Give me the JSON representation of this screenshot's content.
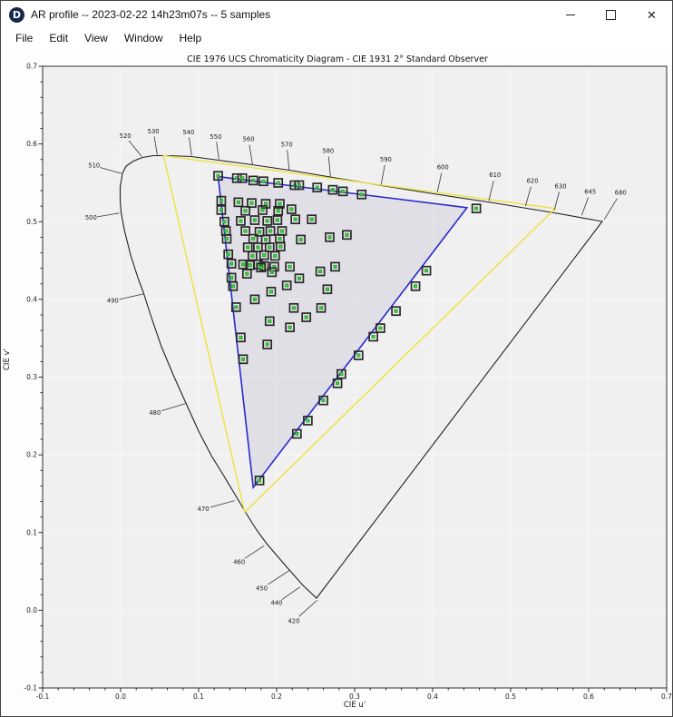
{
  "window": {
    "title": "AR profile -- 2023-02-22 14h23m07s -- 5 samples",
    "icon_letter": "D",
    "controls": {
      "minimize": "minimize",
      "maximize": "maximize",
      "close": "✕"
    }
  },
  "menu": {
    "items": [
      "File",
      "Edit",
      "View",
      "Window",
      "Help"
    ]
  },
  "chart_data": {
    "type": "scatter",
    "title": "CIE 1976 UCS Chromaticity Diagram - CIE 1931 2° Standard Observer",
    "xlabel": "CIE u'",
    "ylabel": "CIE v'",
    "xlim": [
      -0.1,
      0.7
    ],
    "ylim": [
      -0.1,
      0.7
    ],
    "xtick_labels": [
      "-0.1",
      "0.0",
      "0.1",
      "0.2",
      "0.3",
      "0.4",
      "0.5",
      "0.6",
      "0.7"
    ],
    "ytick_labels": [
      "-0.1",
      "0.0",
      "0.1",
      "0.2",
      "0.3",
      "0.4",
      "0.5",
      "0.6",
      "0.7"
    ],
    "grid": true,
    "marker_colors": {
      "sample_outline": "#282828",
      "sample_dot": "#2fd32f"
    },
    "series": [
      {
        "name": "profile-samples",
        "marker": "square-with-green-dot",
        "points": [
          [
            0.125,
            0.559
          ],
          [
            0.149,
            0.556
          ],
          [
            0.156,
            0.556
          ],
          [
            0.17,
            0.553
          ],
          [
            0.183,
            0.552
          ],
          [
            0.202,
            0.55
          ],
          [
            0.223,
            0.547
          ],
          [
            0.229,
            0.547
          ],
          [
            0.252,
            0.544
          ],
          [
            0.272,
            0.541
          ],
          [
            0.285,
            0.539
          ],
          [
            0.309,
            0.535
          ],
          [
            0.456,
            0.517
          ],
          [
            0.129,
            0.527
          ],
          [
            0.129,
            0.515
          ],
          [
            0.133,
            0.5
          ],
          [
            0.135,
            0.488
          ],
          [
            0.136,
            0.478
          ],
          [
            0.138,
            0.458
          ],
          [
            0.142,
            0.446
          ],
          [
            0.142,
            0.428
          ],
          [
            0.144,
            0.417
          ],
          [
            0.148,
            0.39
          ],
          [
            0.154,
            0.351
          ],
          [
            0.157,
            0.323
          ],
          [
            0.151,
            0.525
          ],
          [
            0.168,
            0.524
          ],
          [
            0.186,
            0.523
          ],
          [
            0.204,
            0.523
          ],
          [
            0.16,
            0.514
          ],
          [
            0.182,
            0.515
          ],
          [
            0.202,
            0.514
          ],
          [
            0.219,
            0.516
          ],
          [
            0.154,
            0.501
          ],
          [
            0.172,
            0.502
          ],
          [
            0.188,
            0.501
          ],
          [
            0.201,
            0.502
          ],
          [
            0.224,
            0.503
          ],
          [
            0.245,
            0.503
          ],
          [
            0.16,
            0.488
          ],
          [
            0.178,
            0.487
          ],
          [
            0.192,
            0.488
          ],
          [
            0.207,
            0.488
          ],
          [
            0.17,
            0.478
          ],
          [
            0.186,
            0.477
          ],
          [
            0.204,
            0.478
          ],
          [
            0.231,
            0.477
          ],
          [
            0.268,
            0.48
          ],
          [
            0.29,
            0.483
          ],
          [
            0.163,
            0.467
          ],
          [
            0.176,
            0.467
          ],
          [
            0.191,
            0.467
          ],
          [
            0.205,
            0.468
          ],
          [
            0.169,
            0.456
          ],
          [
            0.184,
            0.457
          ],
          [
            0.198,
            0.456
          ],
          [
            0.157,
            0.445
          ],
          [
            0.166,
            0.444
          ],
          [
            0.176,
            0.445
          ],
          [
            0.184,
            0.443
          ],
          [
            0.162,
            0.433
          ],
          [
            0.18,
            0.441
          ],
          [
            0.197,
            0.442
          ],
          [
            0.217,
            0.442
          ],
          [
            0.194,
            0.435
          ],
          [
            0.229,
            0.427
          ],
          [
            0.256,
            0.436
          ],
          [
            0.275,
            0.442
          ],
          [
            0.213,
            0.418
          ],
          [
            0.265,
            0.413
          ],
          [
            0.193,
            0.41
          ],
          [
            0.172,
            0.4
          ],
          [
            0.222,
            0.389
          ],
          [
            0.257,
            0.389
          ],
          [
            0.238,
            0.377
          ],
          [
            0.191,
            0.372
          ],
          [
            0.217,
            0.364
          ],
          [
            0.188,
            0.342
          ],
          [
            0.392,
            0.437
          ],
          [
            0.378,
            0.417
          ],
          [
            0.353,
            0.385
          ],
          [
            0.333,
            0.363
          ],
          [
            0.324,
            0.352
          ],
          [
            0.305,
            0.328
          ],
          [
            0.283,
            0.304
          ],
          [
            0.278,
            0.292
          ],
          [
            0.26,
            0.27
          ],
          [
            0.24,
            0.244
          ],
          [
            0.226,
            0.227
          ],
          [
            0.178,
            0.167
          ]
        ]
      },
      {
        "name": "display-gamut-triangle",
        "color": "#2929cc",
        "vertices": [
          [
            0.125,
            0.558
          ],
          [
            0.444,
            0.518
          ],
          [
            0.17,
            0.158
          ]
        ]
      },
      {
        "name": "reference-gamut-triangle",
        "color": "#ece23c",
        "vertices": [
          [
            0.055,
            0.585
          ],
          [
            0.557,
            0.517
          ],
          [
            0.159,
            0.126
          ]
        ]
      }
    ],
    "spectral_locus_wavelengths": [
      {
        "wl": "420",
        "label_uv": [
          0.222,
          -0.014
        ],
        "tip_uv": [
          0.252,
          0.013
        ]
      },
      {
        "wl": "440",
        "label_uv": [
          0.2,
          0.009
        ],
        "tip_uv": [
          0.23,
          0.03
        ]
      },
      {
        "wl": "450",
        "label_uv": [
          0.181,
          0.028
        ],
        "tip_uv": [
          0.216,
          0.051
        ]
      },
      {
        "wl": "460",
        "label_uv": [
          0.152,
          0.062
        ],
        "tip_uv": [
          0.184,
          0.083
        ]
      },
      {
        "wl": "470",
        "label_uv": [
          0.106,
          0.13
        ],
        "tip_uv": [
          0.146,
          0.141
        ]
      },
      {
        "wl": "480",
        "label_uv": [
          0.044,
          0.254
        ],
        "tip_uv": [
          0.083,
          0.266
        ]
      },
      {
        "wl": "490",
        "label_uv": [
          -0.01,
          0.398
        ],
        "tip_uv": [
          0.029,
          0.407
        ]
      },
      {
        "wl": "500",
        "label_uv": [
          -0.038,
          0.505
        ],
        "tip_uv": [
          -0.002,
          0.511
        ]
      },
      {
        "wl": "510",
        "label_uv": [
          -0.034,
          0.572
        ],
        "tip_uv": [
          0.001,
          0.562
        ]
      },
      {
        "wl": "520",
        "label_uv": [
          0.006,
          0.61
        ],
        "tip_uv": [
          0.027,
          0.584
        ]
      },
      {
        "wl": "530",
        "label_uv": [
          0.042,
          0.616
        ],
        "tip_uv": [
          0.047,
          0.586
        ]
      },
      {
        "wl": "540",
        "label_uv": [
          0.087,
          0.615
        ],
        "tip_uv": [
          0.091,
          0.585
        ]
      },
      {
        "wl": "550",
        "label_uv": [
          0.122,
          0.609
        ],
        "tip_uv": [
          0.126,
          0.58
        ]
      },
      {
        "wl": "560",
        "label_uv": [
          0.164,
          0.606
        ],
        "tip_uv": [
          0.169,
          0.574
        ]
      },
      {
        "wl": "570",
        "label_uv": [
          0.213,
          0.599
        ],
        "tip_uv": [
          0.216,
          0.567
        ]
      },
      {
        "wl": "580",
        "label_uv": [
          0.266,
          0.591
        ],
        "tip_uv": [
          0.269,
          0.558
        ]
      },
      {
        "wl": "590",
        "label_uv": [
          0.34,
          0.58
        ],
        "tip_uv": [
          0.334,
          0.548
        ]
      },
      {
        "wl": "600",
        "label_uv": [
          0.413,
          0.57
        ],
        "tip_uv": [
          0.406,
          0.538
        ]
      },
      {
        "wl": "610",
        "label_uv": [
          0.48,
          0.56
        ],
        "tip_uv": [
          0.472,
          0.527
        ]
      },
      {
        "wl": "620",
        "label_uv": [
          0.528,
          0.552
        ],
        "tip_uv": [
          0.519,
          0.52
        ]
      },
      {
        "wl": "630",
        "label_uv": [
          0.564,
          0.545
        ],
        "tip_uv": [
          0.556,
          0.515
        ]
      },
      {
        "wl": "645",
        "label_uv": [
          0.602,
          0.538
        ],
        "tip_uv": [
          0.591,
          0.508
        ]
      },
      {
        "wl": "680",
        "label_uv": [
          0.641,
          0.537
        ],
        "tip_uv": [
          0.62,
          0.503
        ]
      }
    ]
  }
}
